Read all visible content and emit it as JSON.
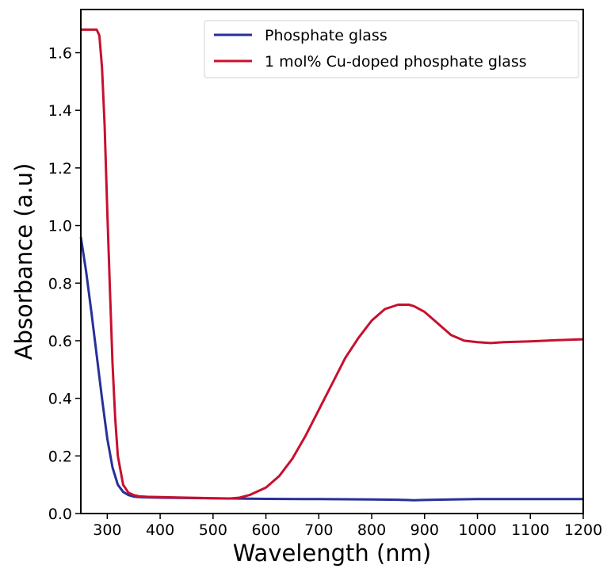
{
  "chart_data": {
    "type": "line",
    "title": "",
    "xlabel": "Wavelength (nm)",
    "ylabel": "Absorbance (a.u)",
    "xlim": [
      250,
      1200
    ],
    "ylim": [
      0,
      1.75
    ],
    "xticks": [
      300,
      400,
      500,
      600,
      700,
      800,
      900,
      1000,
      1100,
      1200
    ],
    "xtick_labels": [
      "300",
      "400",
      "500",
      "600",
      "700",
      "800",
      "900",
      "1000",
      "1100",
      "1200"
    ],
    "yticks": [
      0.0,
      0.2,
      0.4,
      0.6,
      0.8,
      1.0,
      1.2,
      1.4,
      1.6
    ],
    "ytick_labels": [
      "0.0",
      "0.2",
      "0.4",
      "0.6",
      "0.8",
      "1.0",
      "1.2",
      "1.4",
      "1.6"
    ],
    "grid": false,
    "legend": "top-right",
    "series": [
      {
        "name": "Phosphate glass",
        "color": "#27309a",
        "x": [
          250,
          260,
          270,
          280,
          290,
          300,
          310,
          320,
          330,
          340,
          350,
          360,
          375,
          400,
          450,
          500,
          550,
          600,
          700,
          800,
          850,
          880,
          900,
          950,
          1000,
          1100,
          1200
        ],
        "y": [
          0.96,
          0.84,
          0.7,
          0.55,
          0.4,
          0.26,
          0.16,
          0.1,
          0.075,
          0.064,
          0.059,
          0.057,
          0.056,
          0.055,
          0.054,
          0.053,
          0.052,
          0.051,
          0.05,
          0.049,
          0.048,
          0.046,
          0.047,
          0.049,
          0.05,
          0.05,
          0.05
        ]
      },
      {
        "name": "1 mol% Cu-doped phosphate glass",
        "color": "#c8102e",
        "x": [
          250,
          260,
          270,
          280,
          285,
          290,
          295,
          300,
          305,
          310,
          315,
          320,
          330,
          340,
          350,
          360,
          375,
          400,
          450,
          500,
          530,
          550,
          570,
          600,
          625,
          650,
          675,
          700,
          725,
          750,
          775,
          800,
          825,
          850,
          870,
          880,
          900,
          925,
          950,
          975,
          1000,
          1025,
          1050,
          1100,
          1150,
          1200
        ],
        "y": [
          1.68,
          1.68,
          1.68,
          1.68,
          1.66,
          1.55,
          1.35,
          1.05,
          0.78,
          0.52,
          0.33,
          0.2,
          0.1,
          0.072,
          0.064,
          0.06,
          0.058,
          0.057,
          0.055,
          0.053,
          0.052,
          0.055,
          0.065,
          0.09,
          0.13,
          0.19,
          0.27,
          0.36,
          0.45,
          0.54,
          0.61,
          0.67,
          0.71,
          0.725,
          0.725,
          0.72,
          0.7,
          0.66,
          0.62,
          0.6,
          0.595,
          0.592,
          0.595,
          0.598,
          0.602,
          0.605
        ]
      }
    ]
  }
}
